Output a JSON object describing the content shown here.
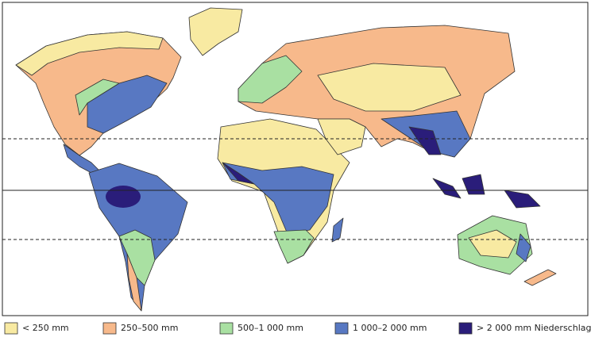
{
  "legend": {
    "items": [
      {
        "label": "< 250 mm",
        "color": "#f8eaa2"
      },
      {
        "label": "250–500 mm",
        "color": "#f7b98b"
      },
      {
        "label": "500–1 000 mm",
        "color": "#a9e0a2"
      },
      {
        "label": "1 000–2 000 mm",
        "color": "#5878c2"
      },
      {
        "label": "> 2 000 mm Niederschlag",
        "color": "#2a1d7a"
      }
    ]
  }
}
